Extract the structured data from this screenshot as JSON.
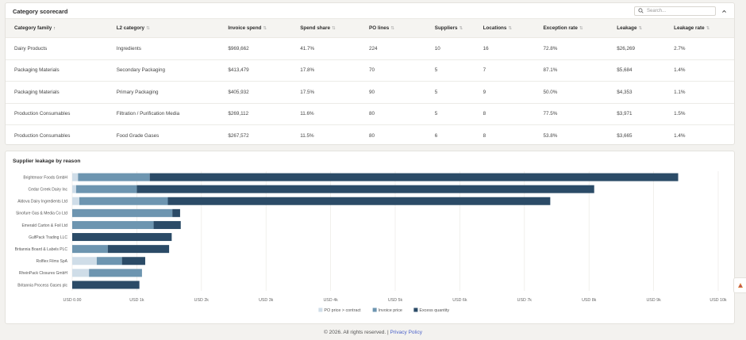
{
  "scorecard": {
    "title": "Category scorecard",
    "search_placeholder": "Search...",
    "columns": [
      {
        "label": "Category family",
        "sort": "asc"
      },
      {
        "label": "L2 category",
        "sort": "none"
      },
      {
        "label": "Invoice spend",
        "sort": "none"
      },
      {
        "label": "Spend share",
        "sort": "none"
      },
      {
        "label": "PO lines",
        "sort": "none"
      },
      {
        "label": "Suppliers",
        "sort": "none"
      },
      {
        "label": "Locations",
        "sort": "none"
      },
      {
        "label": "Exception rate",
        "sort": "none"
      },
      {
        "label": "Leakage",
        "sort": "none"
      },
      {
        "label": "Leakage rate",
        "sort": "none"
      }
    ],
    "rows": [
      [
        "Dairy Products",
        "Ingredients",
        "$969,662",
        "41.7%",
        "224",
        "10",
        "16",
        "72.8%",
        "$26,269",
        "2.7%"
      ],
      [
        "Packaging Materials",
        "Secondary Packaging",
        "$413,479",
        "17.8%",
        "70",
        "5",
        "7",
        "87.1%",
        "$5,684",
        "1.4%"
      ],
      [
        "Packaging Materials",
        "Primary Packaging",
        "$405,932",
        "17.5%",
        "90",
        "5",
        "9",
        "50.0%",
        "$4,353",
        "1.1%"
      ],
      [
        "Production Consumables",
        "Filtration / Purification Media",
        "$269,112",
        "11.6%",
        "80",
        "5",
        "8",
        "77.5%",
        "$3,971",
        "1.5%"
      ],
      [
        "Production Consumables",
        "Food Grade Gases",
        "$267,572",
        "11.5%",
        "80",
        "6",
        "8",
        "53.8%",
        "$3,665",
        "1.4%"
      ]
    ]
  },
  "leakage_chart": {
    "title": "Supplier leakage by reason"
  },
  "chart_data": {
    "type": "bar",
    "orientation": "horizontal",
    "stacked": true,
    "categories": [
      "Brightmoor Foods GmbH",
      "Cedar Creek Dairy Inc",
      "Aldova Dairy Ingredients Ltd",
      "Sinofure Gas & Media Co Ltd",
      "Emerald Carton & Foil Ltd",
      "GulfPack Trading LLC",
      "Britannia Board & Labels PLC",
      "Rolflex Films SpA",
      "RheinPack Closures GmbH",
      "Britannia Process Gases plc"
    ],
    "series": [
      {
        "name": "PO price > contract",
        "color": "#cfdde8",
        "values": [
          90,
          60,
          110,
          0,
          0,
          0,
          0,
          380,
          260,
          0
        ]
      },
      {
        "name": "Invoice price",
        "color": "#6d95b0",
        "values": [
          1110,
          940,
          1370,
          1550,
          1260,
          0,
          550,
          390,
          820,
          0
        ]
      },
      {
        "name": "Excess quantity",
        "color": "#2b4b67",
        "values": [
          8180,
          7080,
          5920,
          120,
          420,
          1540,
          950,
          360,
          0,
          1040
        ]
      }
    ],
    "xlim": [
      0,
      10000
    ],
    "xticks": [
      {
        "value": 0,
        "label": "USD 0.00"
      },
      {
        "value": 1000,
        "label": "USD 1k"
      },
      {
        "value": 2000,
        "label": "USD 2k"
      },
      {
        "value": 3000,
        "label": "USD 3k"
      },
      {
        "value": 4000,
        "label": "USD 4k"
      },
      {
        "value": 5000,
        "label": "USD 5k"
      },
      {
        "value": 6000,
        "label": "USD 6k"
      },
      {
        "value": 7000,
        "label": "USD 7k"
      },
      {
        "value": 8000,
        "label": "USD 8k"
      },
      {
        "value": 9000,
        "label": "USD 9k"
      },
      {
        "value": 10000,
        "label": "USD 10k"
      }
    ],
    "grid": true,
    "legend_position": "bottom"
  },
  "footer": {
    "copyright": "© 2026. All rights reserved. | ",
    "privacy_link": "Privacy Policy"
  },
  "icons": {
    "search": "search-icon",
    "collapse": "chevron-up-icon",
    "floating": "feedback-icon"
  }
}
